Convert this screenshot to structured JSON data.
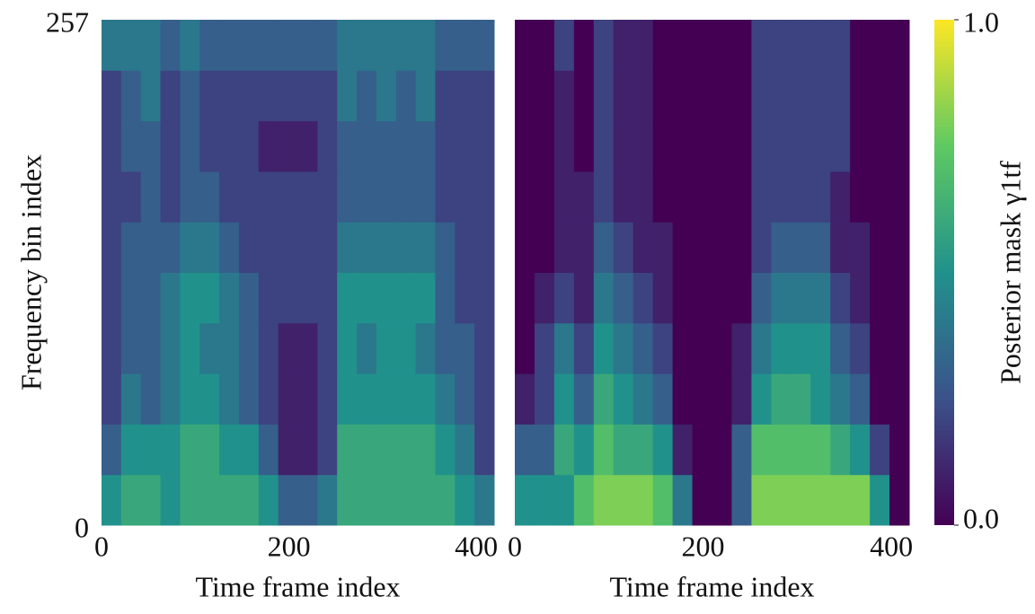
{
  "chart_data": [
    {
      "type": "heatmap",
      "xlabel": "Time frame index",
      "ylabel": "Frequency bin index",
      "colormap": "viridis",
      "xlim": [
        0,
        419
      ],
      "ylim": [
        0,
        257
      ],
      "xticks": [
        0,
        200,
        400
      ],
      "yticks": [
        0,
        257
      ],
      "z": [
        [
          0.5,
          0.6,
          0.6,
          0.5,
          0.6,
          0.6,
          0.6,
          0.6,
          0.5,
          0.3,
          0.3,
          0.4,
          0.6,
          0.6,
          0.6,
          0.6,
          0.6,
          0.6,
          0.5,
          0.4
        ],
        [
          0.3,
          0.5,
          0.5,
          0.5,
          0.6,
          0.6,
          0.5,
          0.5,
          0.3,
          0.1,
          0.1,
          0.2,
          0.6,
          0.6,
          0.6,
          0.6,
          0.6,
          0.5,
          0.4,
          0.2
        ],
        [
          0.2,
          0.4,
          0.3,
          0.4,
          0.5,
          0.5,
          0.4,
          0.3,
          0.2,
          0.1,
          0.1,
          0.2,
          0.5,
          0.5,
          0.5,
          0.5,
          0.5,
          0.4,
          0.3,
          0.2
        ],
        [
          0.2,
          0.3,
          0.3,
          0.4,
          0.5,
          0.4,
          0.4,
          0.3,
          0.2,
          0.1,
          0.1,
          0.2,
          0.5,
          0.4,
          0.5,
          0.5,
          0.4,
          0.3,
          0.3,
          0.2
        ],
        [
          0.2,
          0.3,
          0.3,
          0.4,
          0.5,
          0.5,
          0.4,
          0.3,
          0.2,
          0.2,
          0.2,
          0.2,
          0.5,
          0.5,
          0.5,
          0.5,
          0.5,
          0.3,
          0.2,
          0.2
        ],
        [
          0.2,
          0.3,
          0.3,
          0.3,
          0.4,
          0.4,
          0.3,
          0.2,
          0.2,
          0.2,
          0.2,
          0.2,
          0.4,
          0.4,
          0.4,
          0.4,
          0.4,
          0.3,
          0.2,
          0.2
        ],
        [
          0.2,
          0.2,
          0.3,
          0.2,
          0.3,
          0.3,
          0.2,
          0.2,
          0.2,
          0.2,
          0.2,
          0.2,
          0.3,
          0.3,
          0.3,
          0.3,
          0.3,
          0.2,
          0.2,
          0.2
        ],
        [
          0.2,
          0.3,
          0.3,
          0.2,
          0.3,
          0.2,
          0.2,
          0.2,
          0.1,
          0.1,
          0.1,
          0.2,
          0.3,
          0.3,
          0.3,
          0.3,
          0.3,
          0.2,
          0.2,
          0.2
        ],
        [
          0.2,
          0.3,
          0.4,
          0.2,
          0.3,
          0.2,
          0.2,
          0.2,
          0.2,
          0.2,
          0.2,
          0.2,
          0.4,
          0.3,
          0.4,
          0.3,
          0.4,
          0.2,
          0.2,
          0.2
        ],
        [
          0.4,
          0.4,
          0.4,
          0.3,
          0.4,
          0.3,
          0.3,
          0.3,
          0.3,
          0.3,
          0.3,
          0.3,
          0.4,
          0.4,
          0.4,
          0.4,
          0.4,
          0.3,
          0.3,
          0.3
        ]
      ]
    },
    {
      "type": "heatmap",
      "xlabel": "Time frame index",
      "colormap": "viridis",
      "xlim": [
        0,
        419
      ],
      "ylim": [
        0,
        257
      ],
      "xticks": [
        0,
        200,
        400
      ],
      "z": [
        [
          0.5,
          0.5,
          0.5,
          0.7,
          0.8,
          0.8,
          0.8,
          0.7,
          0.4,
          0,
          0,
          0.3,
          0.8,
          0.8,
          0.8,
          0.8,
          0.8,
          0.8,
          0.5,
          0
        ],
        [
          0.3,
          0.3,
          0.6,
          0.5,
          0.7,
          0.6,
          0.6,
          0.5,
          0.1,
          0,
          0,
          0.3,
          0.7,
          0.7,
          0.7,
          0.7,
          0.6,
          0.5,
          0.2,
          0
        ],
        [
          0.1,
          0.2,
          0.5,
          0.3,
          0.6,
          0.5,
          0.4,
          0.3,
          0,
          0,
          0,
          0.1,
          0.5,
          0.6,
          0.6,
          0.5,
          0.4,
          0.3,
          0,
          0
        ],
        [
          0,
          0.2,
          0.4,
          0.2,
          0.5,
          0.4,
          0.3,
          0.2,
          0,
          0,
          0,
          0.1,
          0.4,
          0.5,
          0.5,
          0.5,
          0.3,
          0.2,
          0,
          0
        ],
        [
          0,
          0.1,
          0.2,
          0.1,
          0.4,
          0.3,
          0.2,
          0.1,
          0,
          0,
          0,
          0,
          0.3,
          0.4,
          0.4,
          0.4,
          0.2,
          0.1,
          0,
          0
        ],
        [
          0,
          0,
          0.1,
          0.1,
          0.3,
          0.2,
          0.1,
          0.1,
          0,
          0,
          0,
          0,
          0.2,
          0.3,
          0.3,
          0.3,
          0.1,
          0.1,
          0,
          0
        ],
        [
          0,
          0,
          0.1,
          0.1,
          0.2,
          0.1,
          0.1,
          0,
          0,
          0,
          0,
          0,
          0.2,
          0.2,
          0.2,
          0.2,
          0.1,
          0,
          0,
          0
        ],
        [
          0,
          0,
          0.1,
          0,
          0.2,
          0.1,
          0.1,
          0,
          0,
          0,
          0,
          0,
          0.2,
          0.2,
          0.2,
          0.2,
          0.2,
          0,
          0,
          0
        ],
        [
          0,
          0,
          0.1,
          0,
          0.2,
          0.1,
          0.1,
          0,
          0,
          0,
          0,
          0,
          0.2,
          0.2,
          0.2,
          0.2,
          0.2,
          0,
          0,
          0
        ],
        [
          0,
          0,
          0.2,
          0,
          0.2,
          0.1,
          0.1,
          0,
          0,
          0,
          0,
          0,
          0.2,
          0.2,
          0.2,
          0.2,
          0.2,
          0,
          0,
          0
        ]
      ]
    },
    {
      "type": "colorbar",
      "label": "Posterior mask γ1tf",
      "colormap": "viridis",
      "zlim": [
        0,
        1
      ],
      "zticks": [
        {
          "value": 0,
          "label": "0.0"
        },
        {
          "value": 1,
          "label": "1.0"
        }
      ]
    }
  ]
}
